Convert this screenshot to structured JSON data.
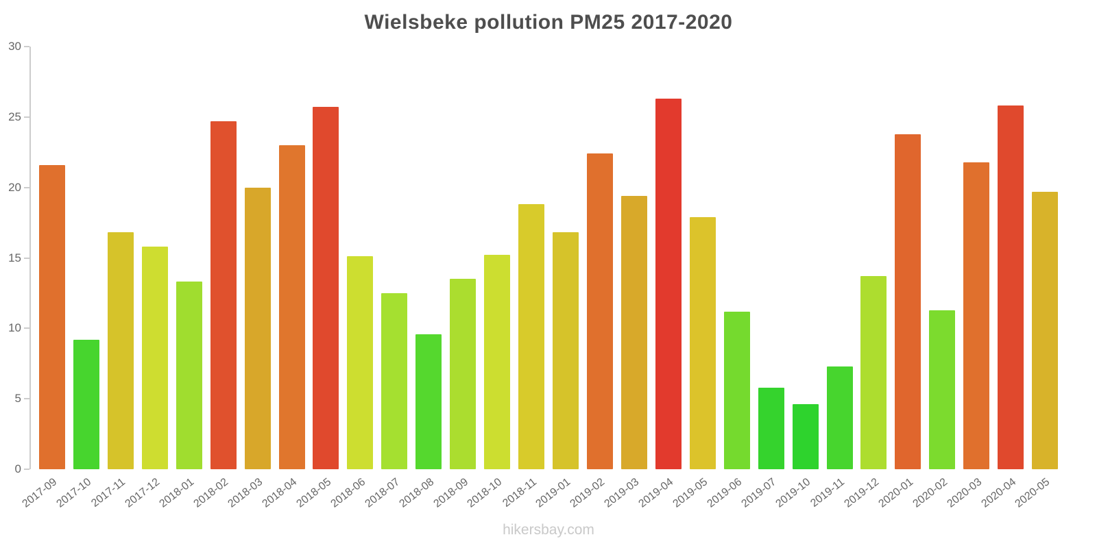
{
  "header": {
    "title": "Wielsbeke pollution PM25 2017-2020"
  },
  "footer": {
    "watermark": "hikersbay.com"
  },
  "chart_data": {
    "type": "bar",
    "title": "Wielsbeke pollution PM25 2017-2020",
    "xlabel": "",
    "ylabel": "",
    "ylim": [
      0,
      30
    ],
    "yticks": [
      0,
      5,
      10,
      15,
      20,
      25,
      30
    ],
    "grid": false,
    "legend": false,
    "categories": [
      "2017-09",
      "2017-10",
      "2017-11",
      "2017-12",
      "2018-01",
      "2018-02",
      "2018-03",
      "2018-04",
      "2018-05",
      "2018-06",
      "2018-07",
      "2018-08",
      "2018-09",
      "2018-10",
      "2018-11",
      "2019-01",
      "2019-02",
      "2019-03",
      "2019-04",
      "2019-05",
      "2019-06",
      "2019-07",
      "2019-10",
      "2019-11",
      "2019-12",
      "2020-01",
      "2020-02",
      "2020-03",
      "2020-04",
      "2020-05"
    ],
    "values": [
      21.6,
      9.2,
      16.8,
      15.8,
      13.3,
      24.7,
      20.0,
      23.0,
      25.7,
      15.1,
      12.5,
      9.6,
      13.5,
      15.2,
      18.8,
      16.8,
      22.4,
      19.4,
      26.3,
      17.9,
      11.2,
      5.8,
      4.6,
      7.3,
      13.7,
      23.8,
      11.3,
      21.8,
      25.8,
      19.7
    ],
    "colors": [
      "#e0702d",
      "#47d52e",
      "#d6c32a",
      "#cedd30",
      "#a0dd2f",
      "#e0512d",
      "#d8a72a",
      "#e0762d",
      "#e0492d",
      "#cdde30",
      "#a5e030",
      "#55d82e",
      "#abdd2f",
      "#ccde30",
      "#d8cb2b",
      "#d6c32a",
      "#e0702d",
      "#d8a92a",
      "#e23a2d",
      "#dcc32b",
      "#75da2e",
      "#35d32d",
      "#2ed32d",
      "#47d52e",
      "#addd2f",
      "#e0662d",
      "#7cdb2e",
      "#e0702d",
      "#e0492d",
      "#d8b32a"
    ]
  }
}
